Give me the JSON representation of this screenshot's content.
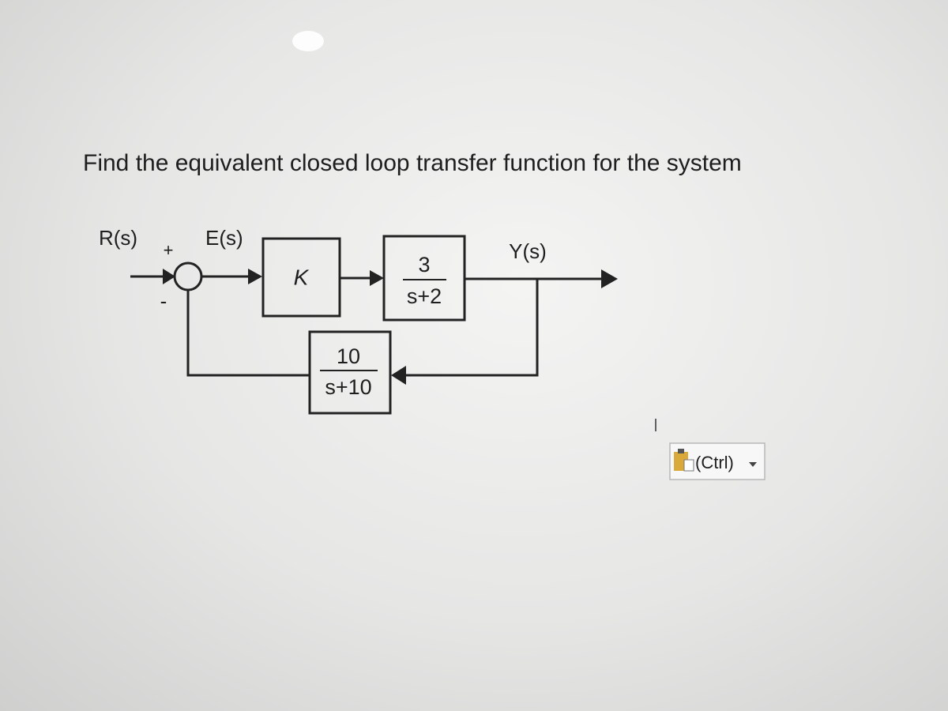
{
  "question": "Find the equivalent closed loop transfer function for the system",
  "diagram": {
    "input_label": "R(s)",
    "plus_sign": "+",
    "minus_sign": "-",
    "error_label": "E(s)",
    "controller": "K",
    "plant": {
      "numerator": "3",
      "denominator": "s+2"
    },
    "output_label": "Y(s)",
    "feedback": {
      "numerator": "10",
      "denominator": "s+10"
    }
  },
  "paste_options": {
    "label": "(Ctrl)"
  }
}
